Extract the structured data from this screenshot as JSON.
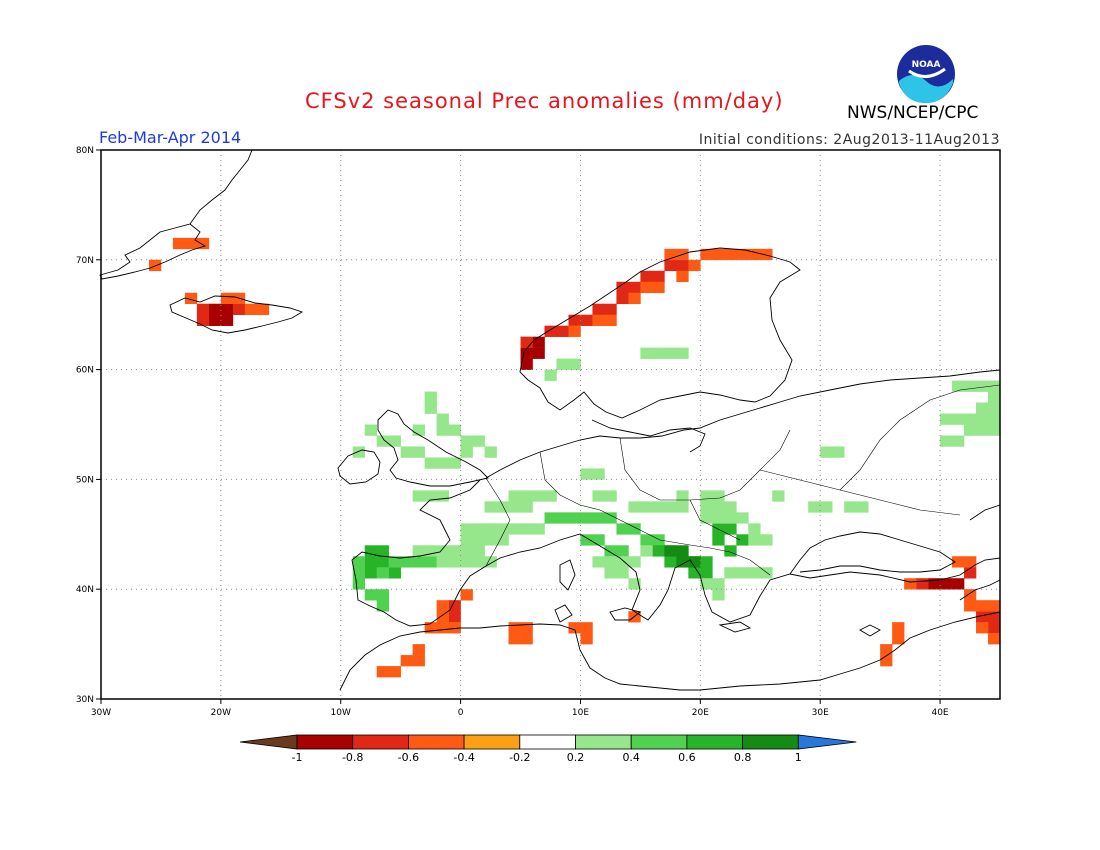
{
  "header": {
    "title": "CFSv2 seasonal Prec anomalies (mm/day)",
    "season": "Feb-Mar-Apr 2014",
    "initial_conditions": "Initial conditions: 2Aug2013-11Aug2013",
    "agency": "NWS/NCEP/CPC",
    "logo_text": "NOAA"
  },
  "map": {
    "lon_range": [
      -30,
      45
    ],
    "lat_range": [
      30,
      80
    ],
    "lon_ticks": [
      "30W",
      "20W",
      "10W",
      "0",
      "10E",
      "20E",
      "30E",
      "40E"
    ],
    "lat_ticks": [
      "30N",
      "40N",
      "50N",
      "60N",
      "70N",
      "80N"
    ],
    "grid": "dotted"
  },
  "colorbar": {
    "labels": [
      "-1",
      "-0.8",
      "-0.6",
      "-0.4",
      "-0.2",
      "0.2",
      "0.4",
      "0.6",
      "0.8",
      "1"
    ],
    "colors": [
      "#6b3a1e",
      "#a80000",
      "#e02814",
      "#ff5a14",
      "#ffa014",
      "#ffffff",
      "#96e68c",
      "#50d250",
      "#28b428",
      "#148c14",
      "#2878dc"
    ]
  },
  "anomaly_regions": [
    {
      "name": "iceland-south",
      "level": -0.8,
      "cells": [
        [
          -21,
          64
        ],
        [
          -20,
          64
        ],
        [
          -21,
          65
        ],
        [
          -20,
          65
        ]
      ]
    },
    {
      "name": "iceland",
      "level": -0.6,
      "cells": [
        [
          -22,
          65
        ],
        [
          -19,
          65
        ],
        [
          -22,
          64
        ]
      ]
    },
    {
      "name": "iceland-edge",
      "level": -0.4,
      "cells": [
        [
          -23,
          66
        ],
        [
          -20,
          66
        ],
        [
          -19,
          66
        ],
        [
          -18,
          65
        ],
        [
          -17,
          65
        ]
      ]
    },
    {
      "name": "greenland-east",
      "level": -0.4,
      "cells": [
        [
          -24,
          71
        ],
        [
          -23,
          71
        ],
        [
          -22,
          71
        ],
        [
          -26,
          69
        ]
      ]
    },
    {
      "name": "norway-sw",
      "level": -0.8,
      "cells": [
        [
          5,
          61
        ],
        [
          6,
          61
        ],
        [
          6,
          62
        ],
        [
          5,
          60
        ]
      ]
    },
    {
      "name": "norway-coast",
      "level": -0.6,
      "cells": [
        [
          5,
          62
        ],
        [
          7,
          63
        ],
        [
          8,
          63
        ],
        [
          9,
          64
        ],
        [
          10,
          64
        ],
        [
          11,
          65
        ],
        [
          12,
          65
        ],
        [
          13,
          66
        ],
        [
          13,
          67
        ],
        [
          14,
          67
        ],
        [
          15,
          68
        ],
        [
          16,
          68
        ],
        [
          17,
          69
        ],
        [
          18,
          69
        ]
      ]
    },
    {
      "name": "norway-north",
      "level": -0.4,
      "cells": [
        [
          9,
          63
        ],
        [
          11,
          64
        ],
        [
          12,
          64
        ],
        [
          14,
          66
        ],
        [
          15,
          67
        ],
        [
          16,
          67
        ],
        [
          18,
          68
        ],
        [
          19,
          69
        ],
        [
          20,
          70
        ],
        [
          21,
          70
        ],
        [
          22,
          70
        ],
        [
          23,
          70
        ],
        [
          24,
          70
        ],
        [
          25,
          70
        ],
        [
          17,
          70
        ],
        [
          18,
          70
        ]
      ]
    },
    {
      "name": "spain-se",
      "level": -0.6,
      "cells": [
        [
          -1,
          38
        ],
        [
          -1,
          37
        ]
      ]
    },
    {
      "name": "spain-south",
      "level": -0.4,
      "cells": [
        [
          -2,
          38
        ],
        [
          -2,
          37
        ],
        [
          -3,
          36
        ],
        [
          -2,
          36
        ],
        [
          -1,
          36
        ],
        [
          0,
          39
        ]
      ]
    },
    {
      "name": "north-africa",
      "level": -0.4,
      "cells": [
        [
          4,
          36
        ],
        [
          5,
          36
        ],
        [
          4,
          35
        ],
        [
          5,
          35
        ],
        [
          9,
          36
        ],
        [
          10,
          36
        ],
        [
          10,
          35
        ],
        [
          14,
          37
        ],
        [
          -4,
          34
        ],
        [
          -4,
          33
        ],
        [
          -5,
          33
        ],
        [
          -6,
          32
        ],
        [
          -7,
          32
        ]
      ]
    },
    {
      "name": "caucasus",
      "level": -0.8,
      "cells": [
        [
          39,
          40
        ],
        [
          40,
          40
        ],
        [
          41,
          40
        ]
      ]
    },
    {
      "name": "turkey-east",
      "level": -0.6,
      "cells": [
        [
          38,
          40
        ],
        [
          42,
          41
        ],
        [
          43,
          37
        ],
        [
          44,
          37
        ],
        [
          44,
          36
        ]
      ]
    },
    {
      "name": "turkey-east-edge",
      "level": -0.4,
      "cells": [
        [
          37,
          40
        ],
        [
          41,
          42
        ],
        [
          42,
          42
        ],
        [
          42,
          39
        ],
        [
          42,
          38
        ],
        [
          43,
          38
        ],
        [
          44,
          38
        ],
        [
          43,
          36
        ],
        [
          36,
          36
        ],
        [
          36,
          35
        ],
        [
          35,
          34
        ],
        [
          35,
          33
        ],
        [
          44,
          35
        ]
      ]
    },
    {
      "name": "iberia-north",
      "level": 0.6,
      "cells": [
        [
          -8,
          43
        ],
        [
          -7,
          43
        ],
        [
          -8,
          42
        ],
        [
          -7,
          42
        ],
        [
          -8,
          41
        ],
        [
          -6,
          41
        ]
      ]
    },
    {
      "name": "iberia-west",
      "level": 0.4,
      "cells": [
        [
          -9,
          42
        ],
        [
          -9,
          41
        ],
        [
          -9,
          40
        ],
        [
          -7,
          41
        ],
        [
          -6,
          42
        ],
        [
          -5,
          42
        ],
        [
          -4,
          42
        ],
        [
          -3,
          42
        ],
        [
          -8,
          39
        ],
        [
          -7,
          39
        ],
        [
          -7,
          38
        ]
      ]
    },
    {
      "name": "france-spain",
      "level": 0.2,
      "cells": [
        [
          -2,
          43
        ],
        [
          -1,
          43
        ],
        [
          0,
          43
        ],
        [
          1,
          43
        ],
        [
          -4,
          43
        ],
        [
          -3,
          43
        ],
        [
          0,
          45
        ],
        [
          1,
          45
        ],
        [
          2,
          45
        ],
        [
          3,
          45
        ],
        [
          4,
          45
        ],
        [
          5,
          45
        ],
        [
          6,
          45
        ],
        [
          0,
          44
        ],
        [
          1,
          44
        ],
        [
          2,
          44
        ],
        [
          3,
          44
        ],
        [
          -2,
          42
        ],
        [
          -1,
          42
        ],
        [
          0,
          42
        ],
        [
          1,
          42
        ],
        [
          2,
          42
        ],
        [
          2,
          47
        ],
        [
          3,
          47
        ],
        [
          4,
          47
        ],
        [
          5,
          47
        ],
        [
          6,
          48
        ],
        [
          7,
          48
        ]
      ]
    },
    {
      "name": "uk",
      "level": 0.2,
      "cells": [
        [
          -3,
          57
        ],
        [
          -3,
          56
        ],
        [
          -2,
          55
        ],
        [
          -2,
          54
        ],
        [
          -1,
          54
        ],
        [
          0,
          53
        ],
        [
          1,
          53
        ],
        [
          2,
          52
        ],
        [
          0,
          52
        ],
        [
          -1,
          51
        ],
        [
          -2,
          51
        ],
        [
          -3,
          51
        ],
        [
          -4,
          52
        ],
        [
          -5,
          52
        ],
        [
          -6,
          53
        ],
        [
          -7,
          53
        ],
        [
          -8,
          54
        ],
        [
          -9,
          52
        ],
        [
          -4,
          54
        ]
      ]
    },
    {
      "name": "alps-italy",
      "level": 0.4,
      "cells": [
        [
          7,
          46
        ],
        [
          8,
          46
        ],
        [
          9,
          46
        ],
        [
          10,
          46
        ],
        [
          11,
          46
        ],
        [
          12,
          46
        ],
        [
          13,
          45
        ],
        [
          14,
          45
        ],
        [
          15,
          44
        ],
        [
          16,
          44
        ],
        [
          17,
          43
        ],
        [
          10,
          44
        ],
        [
          11,
          44
        ],
        [
          12,
          43
        ],
        [
          13,
          43
        ]
      ]
    },
    {
      "name": "balkans",
      "level": 0.6,
      "cells": [
        [
          16,
          43
        ],
        [
          17,
          42
        ],
        [
          18,
          42
        ],
        [
          19,
          42
        ],
        [
          20,
          42
        ],
        [
          19,
          41
        ],
        [
          20,
          41
        ],
        [
          21,
          45
        ],
        [
          22,
          45
        ],
        [
          23,
          44
        ],
        [
          21,
          44
        ],
        [
          22,
          43
        ]
      ]
    },
    {
      "name": "balkans-core",
      "level": 0.8,
      "cells": [
        [
          17,
          43
        ],
        [
          18,
          43
        ],
        [
          18,
          42
        ],
        [
          19,
          42
        ]
      ]
    },
    {
      "name": "balkans-edge",
      "level": 0.2,
      "cells": [
        [
          15,
          43
        ],
        [
          20,
          46
        ],
        [
          21,
          46
        ],
        [
          22,
          46
        ],
        [
          23,
          46
        ],
        [
          24,
          45
        ],
        [
          24,
          44
        ],
        [
          25,
          44
        ],
        [
          21,
          40
        ],
        [
          21,
          39
        ],
        [
          20,
          40
        ],
        [
          22,
          41
        ],
        [
          23,
          41
        ],
        [
          24,
          41
        ],
        [
          25,
          41
        ],
        [
          20,
          47
        ],
        [
          21,
          47
        ],
        [
          22,
          47
        ],
        [
          20,
          48
        ],
        [
          21,
          48
        ],
        [
          14,
          47
        ],
        [
          15,
          47
        ],
        [
          16,
          47
        ],
        [
          17,
          47
        ],
        [
          18,
          47
        ],
        [
          18,
          48
        ],
        [
          11,
          42
        ],
        [
          12,
          42
        ],
        [
          13,
          42
        ],
        [
          14,
          42
        ],
        [
          12,
          41
        ],
        [
          13,
          41
        ],
        [
          14,
          40
        ]
      ]
    },
    {
      "name": "scandinavia-south",
      "level": 0.2,
      "cells": [
        [
          8,
          60
        ],
        [
          9,
          60
        ],
        [
          7,
          59
        ],
        [
          15,
          61
        ],
        [
          16,
          61
        ],
        [
          17,
          61
        ],
        [
          18,
          61
        ],
        [
          30,
          52
        ],
        [
          31,
          52
        ],
        [
          26,
          48
        ],
        [
          29,
          47
        ],
        [
          30,
          47
        ],
        [
          32,
          47
        ],
        [
          33,
          47
        ],
        [
          11,
          48
        ],
        [
          12,
          48
        ],
        [
          -3,
          48
        ],
        [
          -2,
          48
        ],
        [
          -4,
          48
        ],
        [
          4,
          48
        ],
        [
          5,
          48
        ],
        [
          10,
          50
        ],
        [
          11,
          50
        ]
      ]
    },
    {
      "name": "russia-east",
      "level": 0.2,
      "cells": [
        [
          41,
          58
        ],
        [
          42,
          58
        ],
        [
          43,
          58
        ],
        [
          44,
          58
        ],
        [
          40,
          55
        ],
        [
          41,
          55
        ],
        [
          42,
          55
        ],
        [
          43,
          55
        ],
        [
          44,
          55
        ],
        [
          42,
          54
        ],
        [
          43,
          54
        ],
        [
          44,
          54
        ],
        [
          43,
          56
        ],
        [
          44,
          56
        ],
        [
          44,
          57
        ],
        [
          41,
          53
        ],
        [
          40,
          53
        ]
      ]
    }
  ]
}
